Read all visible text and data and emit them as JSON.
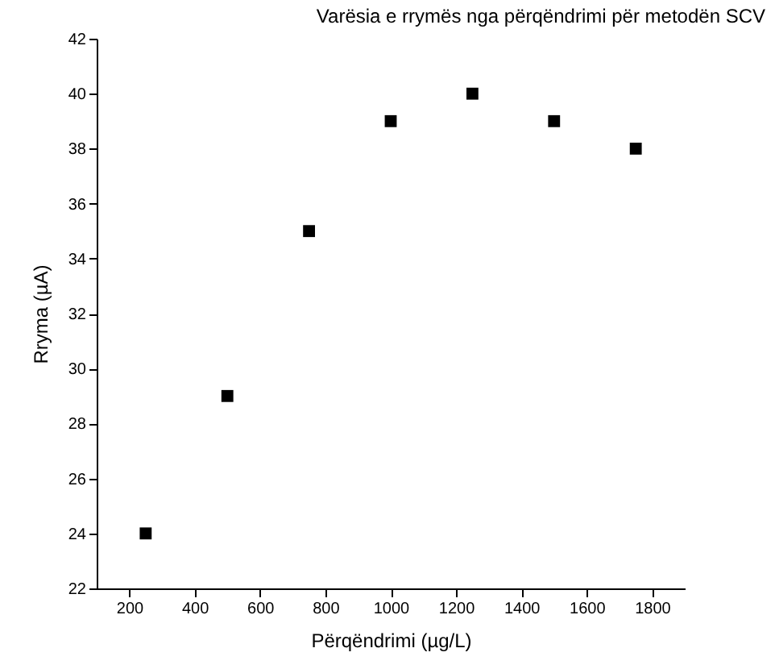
{
  "chart_data": {
    "type": "scatter",
    "title": "Varësia e rrymës nga përqëndrimi për metodën SCV",
    "xlabel": "Përqëndrimi (µg/L)",
    "ylabel": "Rryma (µA)",
    "x": [
      250,
      500,
      750,
      1000,
      1250,
      1500,
      1750
    ],
    "series": [
      {
        "color": "#000000",
        "values": [
          24,
          29,
          35,
          39,
          40,
          39,
          38
        ]
      }
    ],
    "xlim": [
      100,
      1900
    ],
    "xticks": [
      200,
      400,
      600,
      800,
      1000,
      1200,
      1400,
      1600,
      1800
    ],
    "ylim": [
      22,
      42
    ],
    "yticks": [
      22,
      24,
      26,
      28,
      30,
      32,
      34,
      36,
      38,
      40,
      42
    ],
    "grid": false,
    "legend": false,
    "marker": "square"
  }
}
